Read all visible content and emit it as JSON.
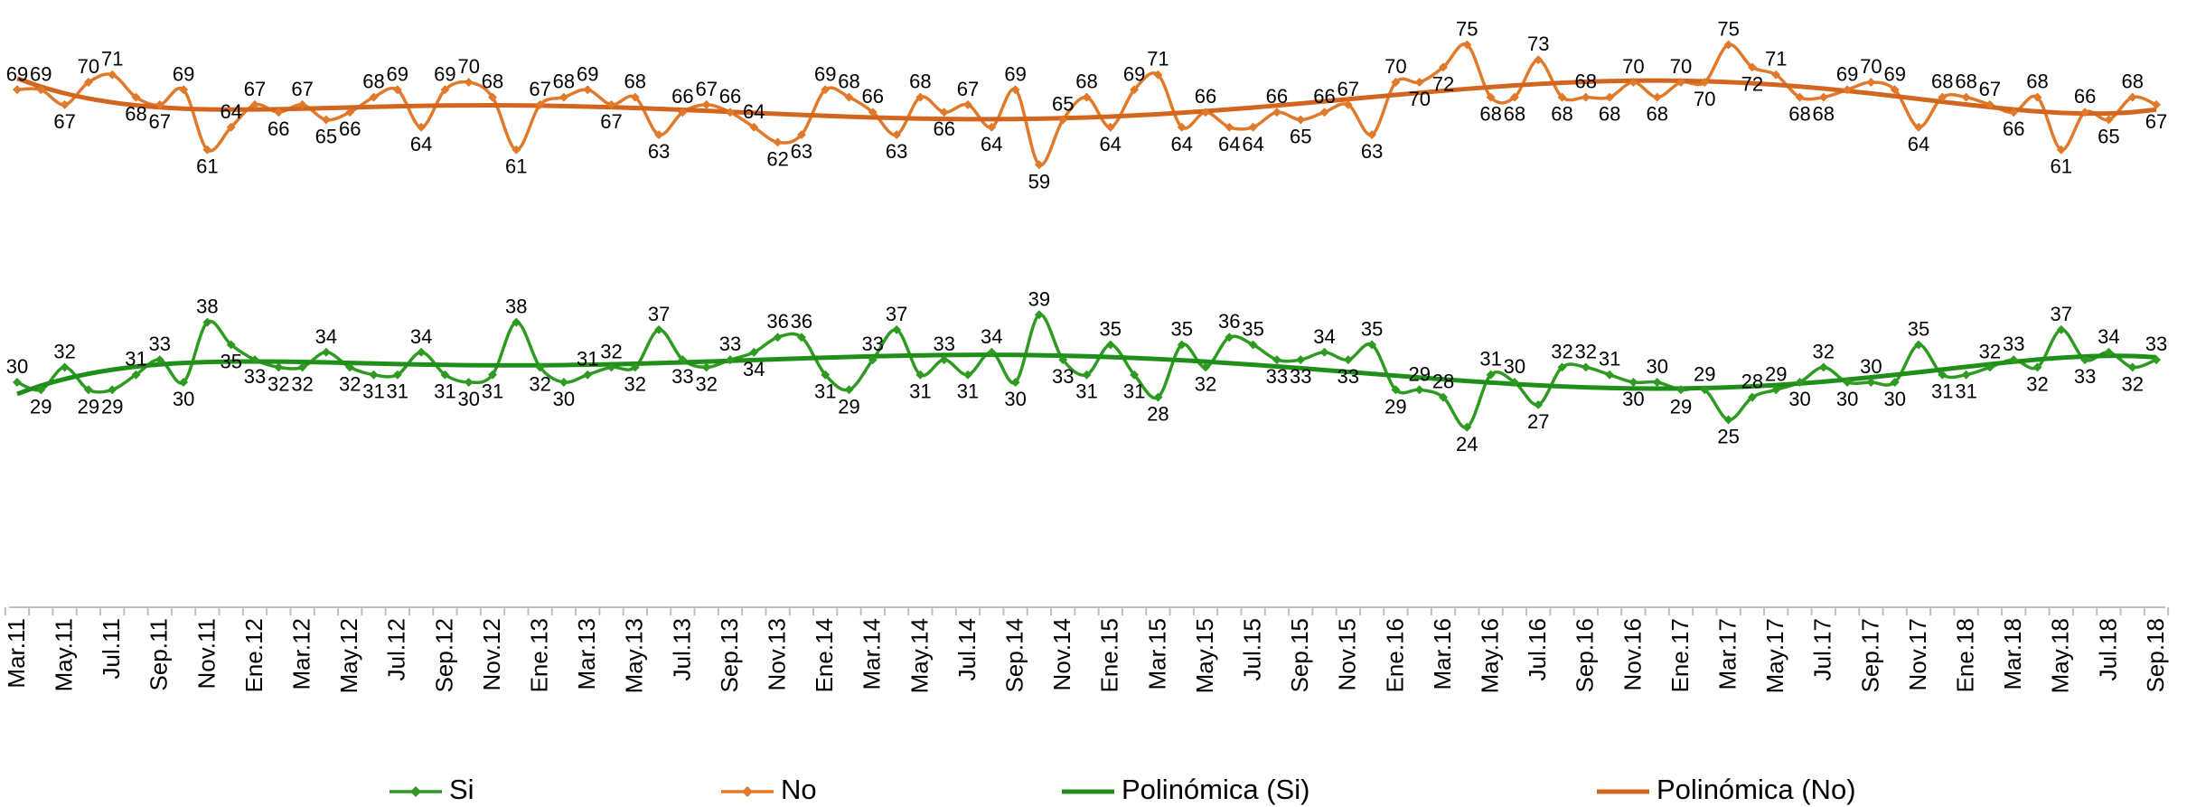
{
  "chart_data": {
    "type": "line",
    "categories": [
      "Mar.11",
      null,
      "May.11",
      null,
      "Jul.11",
      null,
      "Sep.11",
      null,
      "Nov.11",
      null,
      "Ene.12",
      null,
      "Mar.12",
      null,
      "May.12",
      null,
      "Jul.12",
      null,
      "Sep.12",
      null,
      "Nov.12",
      null,
      "Ene.13",
      null,
      "Mar.13",
      null,
      "May.13",
      null,
      "Jul.13",
      null,
      "Sep.13",
      null,
      "Nov.13",
      null,
      "Ene.14",
      null,
      "Mar.14",
      null,
      "May.14",
      null,
      "Jul.14",
      null,
      "Sep.14",
      null,
      "Nov.14",
      null,
      "Ene.15",
      null,
      "Mar.15",
      null,
      "May.15",
      null,
      "Jul.15",
      null,
      "Sep.15",
      null,
      "Nov.15",
      null,
      "Ene.16",
      null,
      "Mar.16",
      null,
      "May.16",
      null,
      "Jul.16",
      null,
      "Sep.16",
      null,
      "Nov.16",
      null,
      "Ene.17",
      null,
      "Mar.17",
      null,
      "May.17",
      null,
      "Jul.17",
      null,
      "Sep.17",
      null,
      "Nov.17",
      null,
      "Ene.18",
      null,
      "Mar.18",
      null,
      "May.18",
      null,
      "Jul.18",
      null,
      "Sep.18"
    ],
    "series": [
      {
        "name": "Si",
        "color": "#2f9a22",
        "values": [
          30,
          29,
          32,
          29,
          29,
          31,
          33,
          30,
          38,
          35,
          33,
          32,
          32,
          34,
          32,
          31,
          31,
          34,
          31,
          30,
          31,
          38,
          32,
          30,
          31,
          32,
          32,
          37,
          33,
          32,
          33,
          34,
          36,
          36,
          31,
          29,
          33,
          37,
          31,
          33,
          31,
          34,
          30,
          39,
          33,
          31,
          35,
          31,
          28,
          35,
          32,
          36,
          35,
          33,
          33,
          34,
          33,
          35,
          29,
          29,
          28,
          24,
          31,
          30,
          27,
          32,
          32,
          31,
          30,
          30,
          29,
          29,
          25,
          28,
          29,
          30,
          32,
          30,
          30,
          30,
          35,
          31,
          31,
          32,
          33,
          32,
          37,
          33,
          34,
          32,
          33
        ],
        "trendline": {
          "name": "Polinómica (Si)",
          "type": "polynomial",
          "order": 6,
          "color": "#1f8f1a"
        }
      },
      {
        "name": "No",
        "color": "#e07a2a",
        "values": [
          69,
          69,
          67,
          70,
          71,
          68,
          67,
          69,
          61,
          64,
          67,
          66,
          67,
          65,
          66,
          68,
          69,
          64,
          69,
          70,
          68,
          61,
          67,
          68,
          69,
          67,
          68,
          63,
          66,
          67,
          66,
          64,
          62,
          63,
          69,
          68,
          66,
          63,
          68,
          66,
          67,
          64,
          69,
          59,
          65,
          68,
          64,
          69,
          71,
          64,
          66,
          64,
          64,
          66,
          65,
          66,
          67,
          63,
          70,
          70,
          72,
          75,
          68,
          68,
          73,
          68,
          68,
          68,
          70,
          68,
          70,
          70,
          75,
          72,
          71,
          68,
          68,
          69,
          70,
          69,
          64,
          68,
          68,
          67,
          66,
          68,
          61,
          66,
          65,
          68,
          67
        ],
        "trendline": {
          "name": "Polinómica (No)",
          "type": "polynomial",
          "order": 6,
          "color": "#d2661f"
        }
      }
    ],
    "ylim": [
      0,
      80
    ],
    "legend": "bottom"
  }
}
